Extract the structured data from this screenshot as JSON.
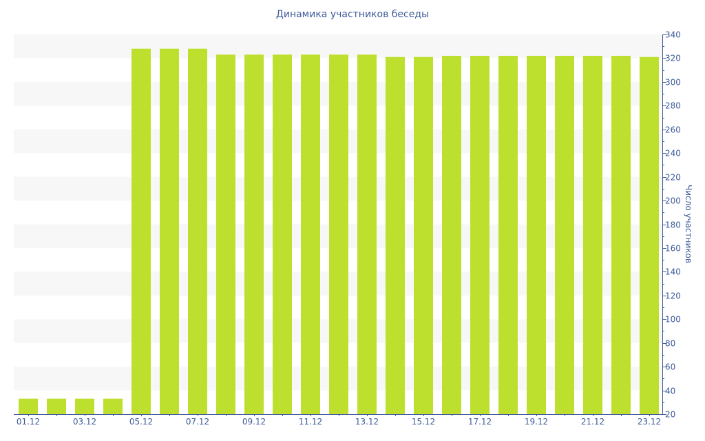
{
  "chart_data": {
    "type": "bar",
    "title": "Динамика участников беседы",
    "ylabel": "Число участников",
    "xlabel": "",
    "categories": [
      "01.12",
      "02.12",
      "03.12",
      "04.12",
      "05.12",
      "06.12",
      "07.12",
      "08.12",
      "09.12",
      "10.12",
      "11.12",
      "12.12",
      "13.12",
      "14.12",
      "15.12",
      "16.12",
      "17.12",
      "18.12",
      "19.12",
      "20.12",
      "21.12",
      "22.12",
      "23.12"
    ],
    "x_tick_labels": [
      "01.12",
      "03.12",
      "05.12",
      "07.12",
      "09.12",
      "11.12",
      "13.12",
      "15.12",
      "17.12",
      "19.12",
      "21.12",
      "23.12"
    ],
    "values": [
      33,
      33,
      33,
      33,
      328,
      328,
      328,
      323,
      323,
      323,
      323,
      323,
      323,
      321,
      321,
      322,
      322,
      322,
      322,
      322,
      322,
      322,
      321
    ],
    "ylim": [
      20,
      340
    ],
    "y_ticks": [
      20,
      40,
      60,
      80,
      100,
      120,
      140,
      160,
      180,
      200,
      220,
      240,
      260,
      280,
      300,
      320,
      340
    ],
    "y_axis_position": "right",
    "grid": "alternating horizontal bands",
    "legend": "none",
    "colors": {
      "bar": "#bde02f",
      "axis": "#3d5a99",
      "band": "#f7f7f7"
    }
  }
}
